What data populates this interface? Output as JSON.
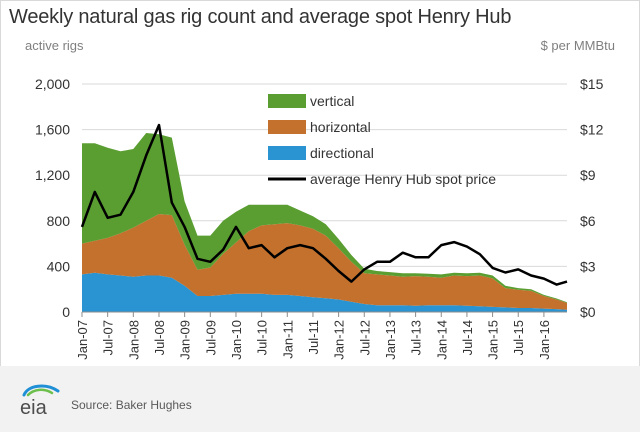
{
  "header": {
    "title": "Weekly natural gas rig count and average spot Henry Hub",
    "left_unit": "active rigs",
    "right_unit": "$ per MMBtu"
  },
  "footer": {
    "logo_text": "eia",
    "source": "Source: Baker Hughes"
  },
  "colors": {
    "vertical": "#5a9e32",
    "horizontal": "#c4712d",
    "directional": "#2a94d2",
    "price": "#000000",
    "axis": "#8c8c8c",
    "text": "#333333"
  },
  "chart_data": {
    "type": "area",
    "title": "Weekly natural gas rig count and average spot Henry Hub",
    "ylabel": "active rigs",
    "y2label": "$ per MMBtu",
    "xlim": [
      2007.0,
      2016.45
    ],
    "ylim": [
      0,
      2000
    ],
    "y2lim": [
      0,
      15
    ],
    "yticks": [
      "0",
      "400",
      "800",
      "1,200",
      "1,600",
      "2,000"
    ],
    "y2ticks": [
      "$0",
      "$3",
      "$6",
      "$9",
      "$12",
      "$15"
    ],
    "xticks": [
      "Jan-07",
      "Jul-07",
      "Jan-08",
      "Jul-08",
      "Jan-09",
      "Jul-09",
      "Jan-10",
      "Jul-10",
      "Jan-11",
      "Jul-11",
      "Jan-12",
      "Jul-12",
      "Jan-13",
      "Jul-13",
      "Jan-14",
      "Jul-14",
      "Jan-15",
      "Jul-15",
      "Jan-16"
    ],
    "legend_position": "top-center",
    "x": [
      2007.0,
      2007.25,
      2007.5,
      2007.75,
      2008.0,
      2008.25,
      2008.5,
      2008.75,
      2009.0,
      2009.25,
      2009.5,
      2009.75,
      2010.0,
      2010.25,
      2010.5,
      2010.75,
      2011.0,
      2011.25,
      2011.5,
      2011.75,
      2012.0,
      2012.25,
      2012.5,
      2012.75,
      2013.0,
      2013.25,
      2013.5,
      2013.75,
      2014.0,
      2014.25,
      2014.5,
      2014.75,
      2015.0,
      2015.25,
      2015.5,
      2015.75,
      2016.0,
      2016.25,
      2016.45
    ],
    "series": [
      {
        "name": "directional",
        "values": [
          330,
          345,
          330,
          320,
          310,
          320,
          320,
          300,
          230,
          140,
          140,
          150,
          160,
          160,
          160,
          150,
          150,
          140,
          130,
          120,
          110,
          90,
          70,
          60,
          60,
          60,
          55,
          60,
          60,
          60,
          55,
          50,
          45,
          40,
          35,
          35,
          30,
          25,
          20
        ]
      },
      {
        "name": "horizontal",
        "values": [
          270,
          280,
          320,
          370,
          430,
          480,
          540,
          550,
          360,
          230,
          250,
          360,
          450,
          550,
          600,
          620,
          630,
          620,
          600,
          550,
          450,
          350,
          270,
          270,
          260,
          250,
          260,
          250,
          240,
          260,
          260,
          270,
          250,
          170,
          160,
          150,
          110,
          85,
          60
        ]
      },
      {
        "name": "vertical",
        "values": [
          880,
          855,
          790,
          720,
          690,
          770,
          700,
          680,
          380,
          300,
          280,
          290,
          270,
          230,
          180,
          170,
          160,
          130,
          110,
          100,
          80,
          60,
          40,
          30,
          30,
          30,
          25,
          25,
          30,
          25,
          25,
          25,
          25,
          20,
          15,
          15,
          10,
          8,
          5
        ]
      }
    ],
    "price": {
      "name": "average Henry Hub spot price",
      "values": [
        5.6,
        7.9,
        6.2,
        6.4,
        7.9,
        10.3,
        12.3,
        7.2,
        5.6,
        3.5,
        3.3,
        4.1,
        5.6,
        4.2,
        4.4,
        3.6,
        4.2,
        4.4,
        4.2,
        3.5,
        2.7,
        2.0,
        2.8,
        3.3,
        3.3,
        3.9,
        3.6,
        3.6,
        4.4,
        4.6,
        4.3,
        3.8,
        2.9,
        2.6,
        2.8,
        2.4,
        2.2,
        1.8,
        2.0
      ]
    }
  }
}
